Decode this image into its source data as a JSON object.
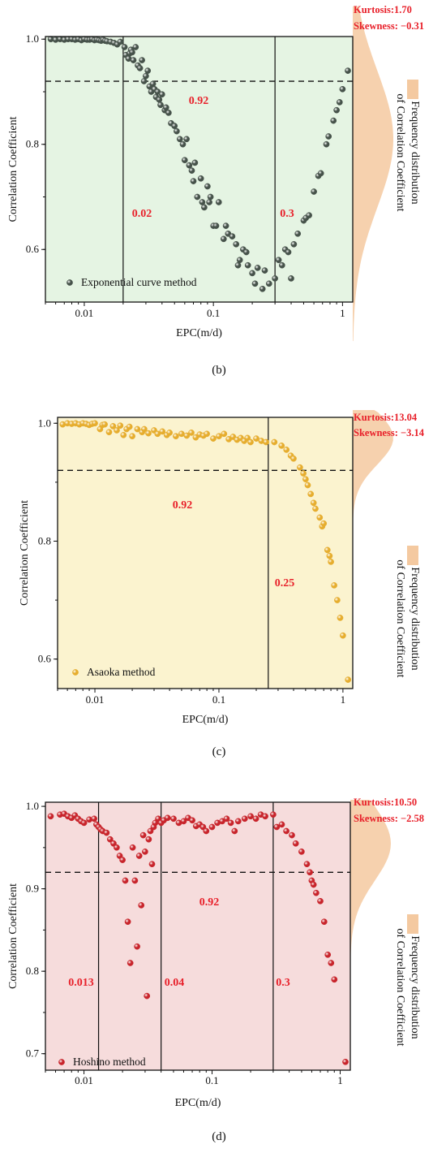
{
  "chart_data": [
    {
      "type": "scatter",
      "panel_label": "b",
      "panel_caption": "(b)",
      "xlabel": "EPC(m/d)",
      "ylabel": "Correlation Coefficient",
      "x_scale": "log",
      "xlim": [
        0.005,
        1.2
      ],
      "ylim": [
        0.5,
        1.005
      ],
      "xticks": [
        0.01,
        0.1,
        1
      ],
      "xtick_labels": [
        "0.01",
        "0.1",
        "1"
      ],
      "yticks": [
        0.6,
        0.8,
        1.0
      ],
      "ytick_labels": [
        "0.6",
        "0.8",
        "1.0"
      ],
      "plot_bg": "#e5f4e3",
      "marker_color": "#46524a",
      "legend": "Exponential curve method",
      "legend_position": "bottom-left",
      "hline": 0.92,
      "hline_label": "0.92",
      "vlines": [
        0.02,
        0.3
      ],
      "vline_labels": [
        "0.02",
        "0.3"
      ],
      "kurtosis": "Kurtosis:1.70",
      "skewness": "Skewness: −0.31",
      "distribution": {
        "mean": 0.81,
        "sd": 0.13
      },
      "dist_label_1": "Frequency distribution",
      "dist_label_2": "of Correlation Coefficient",
      "points": [
        [
          0.0055,
          1.0
        ],
        [
          0.006,
          0.999
        ],
        [
          0.0065,
          1.0
        ],
        [
          0.007,
          0.999
        ],
        [
          0.0075,
          1.0
        ],
        [
          0.008,
          1.0
        ],
        [
          0.0085,
          0.999
        ],
        [
          0.009,
          1.0
        ],
        [
          0.0095,
          0.998
        ],
        [
          0.01,
          1.0
        ],
        [
          0.0105,
          0.999
        ],
        [
          0.011,
          0.999
        ],
        [
          0.0115,
          1.0
        ],
        [
          0.012,
          0.998
        ],
        [
          0.0125,
          0.999
        ],
        [
          0.013,
          0.998
        ],
        [
          0.0135,
          0.997
        ],
        [
          0.014,
          0.999
        ],
        [
          0.0145,
          0.997
        ],
        [
          0.015,
          0.996
        ],
        [
          0.016,
          0.995
        ],
        [
          0.017,
          0.993
        ],
        [
          0.018,
          0.99
        ],
        [
          0.019,
          0.995
        ],
        [
          0.0205,
          0.985
        ],
        [
          0.021,
          0.97
        ],
        [
          0.022,
          0.963
        ],
        [
          0.0225,
          0.973
        ],
        [
          0.023,
          0.98
        ],
        [
          0.0235,
          0.975
        ],
        [
          0.024,
          0.96
        ],
        [
          0.025,
          0.985
        ],
        [
          0.026,
          0.95
        ],
        [
          0.027,
          0.945
        ],
        [
          0.028,
          0.96
        ],
        [
          0.029,
          0.92
        ],
        [
          0.03,
          0.93
        ],
        [
          0.031,
          0.94
        ],
        [
          0.032,
          0.91
        ],
        [
          0.033,
          0.9
        ],
        [
          0.034,
          0.915
        ],
        [
          0.035,
          0.905
        ],
        [
          0.036,
          0.89
        ],
        [
          0.037,
          0.9
        ],
        [
          0.038,
          0.885
        ],
        [
          0.039,
          0.875
        ],
        [
          0.04,
          0.895
        ],
        [
          0.042,
          0.865
        ],
        [
          0.043,
          0.87
        ],
        [
          0.045,
          0.86
        ],
        [
          0.047,
          0.84
        ],
        [
          0.05,
          0.835
        ],
        [
          0.052,
          0.825
        ],
        [
          0.055,
          0.81
        ],
        [
          0.058,
          0.8
        ],
        [
          0.06,
          0.77
        ],
        [
          0.062,
          0.81
        ],
        [
          0.065,
          0.76
        ],
        [
          0.068,
          0.75
        ],
        [
          0.07,
          0.73
        ],
        [
          0.072,
          0.765
        ],
        [
          0.075,
          0.7
        ],
        [
          0.08,
          0.735
        ],
        [
          0.082,
          0.69
        ],
        [
          0.085,
          0.68
        ],
        [
          0.09,
          0.72
        ],
        [
          0.093,
          0.69
        ],
        [
          0.095,
          0.7
        ],
        [
          0.1,
          0.645
        ],
        [
          0.105,
          0.645
        ],
        [
          0.11,
          0.69
        ],
        [
          0.12,
          0.62
        ],
        [
          0.125,
          0.645
        ],
        [
          0.13,
          0.63
        ],
        [
          0.14,
          0.625
        ],
        [
          0.15,
          0.61
        ],
        [
          0.155,
          0.57
        ],
        [
          0.16,
          0.58
        ],
        [
          0.17,
          0.6
        ],
        [
          0.18,
          0.595
        ],
        [
          0.185,
          0.57
        ],
        [
          0.2,
          0.555
        ],
        [
          0.21,
          0.535
        ],
        [
          0.22,
          0.565
        ],
        [
          0.24,
          0.525
        ],
        [
          0.25,
          0.56
        ],
        [
          0.27,
          0.535
        ],
        [
          0.3,
          0.545
        ],
        [
          0.32,
          0.58
        ],
        [
          0.34,
          0.57
        ],
        [
          0.36,
          0.6
        ],
        [
          0.38,
          0.595
        ],
        [
          0.4,
          0.545
        ],
        [
          0.42,
          0.61
        ],
        [
          0.45,
          0.63
        ],
        [
          0.5,
          0.655
        ],
        [
          0.52,
          0.66
        ],
        [
          0.55,
          0.665
        ],
        [
          0.6,
          0.71
        ],
        [
          0.65,
          0.74
        ],
        [
          0.68,
          0.745
        ],
        [
          0.75,
          0.8
        ],
        [
          0.78,
          0.815
        ],
        [
          0.85,
          0.845
        ],
        [
          0.9,
          0.865
        ],
        [
          0.95,
          0.88
        ],
        [
          1.0,
          0.905
        ],
        [
          1.1,
          0.94
        ]
      ]
    },
    {
      "type": "scatter",
      "panel_label": "c",
      "panel_caption": "(c)",
      "xlabel": "EPC(m/d)",
      "ylabel": "Correlation Coefficient",
      "x_scale": "log",
      "xlim": [
        0.005,
        1.2
      ],
      "ylim": [
        0.55,
        1.01
      ],
      "xticks": [
        0.01,
        0.1,
        1
      ],
      "xtick_labels": [
        "0.01",
        "0.1",
        "1"
      ],
      "yticks": [
        0.6,
        0.8,
        1.0
      ],
      "ytick_labels": [
        "0.6",
        "0.8",
        "1.0"
      ],
      "plot_bg": "#fbf3cf",
      "marker_color": "#e6ad2e",
      "legend": "Asaoka method",
      "legend_position": "bottom-left",
      "hline": 0.92,
      "hline_label": "0.92",
      "vlines": [
        0.25
      ],
      "vline_labels": [
        "0.25"
      ],
      "kurtosis": "Kurtosis:13.04",
      "skewness": "Skewness: −3.14",
      "distribution": {
        "mean": 0.975,
        "sd": 0.045
      },
      "dist_label_1": "Frequency distribution",
      "dist_label_2": "of Correlation Coefficient",
      "points": [
        [
          0.0055,
          0.998
        ],
        [
          0.006,
          1.0
        ],
        [
          0.0065,
          0.999
        ],
        [
          0.007,
          1.0
        ],
        [
          0.0075,
          0.998
        ],
        [
          0.008,
          1.0
        ],
        [
          0.0085,
          0.999
        ],
        [
          0.009,
          0.997
        ],
        [
          0.0095,
          0.999
        ],
        [
          0.01,
          1.0
        ],
        [
          0.011,
          0.99
        ],
        [
          0.0115,
          0.997
        ],
        [
          0.012,
          0.998
        ],
        [
          0.013,
          0.985
        ],
        [
          0.014,
          0.995
        ],
        [
          0.015,
          0.988
        ],
        [
          0.016,
          0.996
        ],
        [
          0.017,
          0.98
        ],
        [
          0.018,
          0.99
        ],
        [
          0.019,
          0.994
        ],
        [
          0.02,
          0.978
        ],
        [
          0.022,
          0.99
        ],
        [
          0.024,
          0.985
        ],
        [
          0.025,
          0.99
        ],
        [
          0.027,
          0.983
        ],
        [
          0.03,
          0.988
        ],
        [
          0.032,
          0.982
        ],
        [
          0.035,
          0.986
        ],
        [
          0.038,
          0.98
        ],
        [
          0.04,
          0.984
        ],
        [
          0.045,
          0.978
        ],
        [
          0.05,
          0.982
        ],
        [
          0.055,
          0.979
        ],
        [
          0.06,
          0.984
        ],
        [
          0.065,
          0.976
        ],
        [
          0.07,
          0.981
        ],
        [
          0.075,
          0.979
        ],
        [
          0.08,
          0.982
        ],
        [
          0.09,
          0.974
        ],
        [
          0.1,
          0.978
        ],
        [
          0.11,
          0.982
        ],
        [
          0.12,
          0.973
        ],
        [
          0.13,
          0.977
        ],
        [
          0.14,
          0.972
        ],
        [
          0.15,
          0.975
        ],
        [
          0.16,
          0.97
        ],
        [
          0.17,
          0.975
        ],
        [
          0.18,
          0.968
        ],
        [
          0.2,
          0.974
        ],
        [
          0.22,
          0.97
        ],
        [
          0.24,
          0.968
        ],
        [
          0.28,
          0.968
        ],
        [
          0.32,
          0.962
        ],
        [
          0.35,
          0.955
        ],
        [
          0.38,
          0.945
        ],
        [
          0.4,
          0.94
        ],
        [
          0.45,
          0.925
        ],
        [
          0.48,
          0.915
        ],
        [
          0.5,
          0.905
        ],
        [
          0.52,
          0.895
        ],
        [
          0.55,
          0.88
        ],
        [
          0.58,
          0.865
        ],
        [
          0.6,
          0.855
        ],
        [
          0.65,
          0.84
        ],
        [
          0.68,
          0.825
        ],
        [
          0.7,
          0.83
        ],
        [
          0.75,
          0.785
        ],
        [
          0.78,
          0.775
        ],
        [
          0.8,
          0.765
        ],
        [
          0.85,
          0.725
        ],
        [
          0.9,
          0.7
        ],
        [
          0.95,
          0.67
        ],
        [
          1.0,
          0.64
        ],
        [
          1.1,
          0.565
        ]
      ]
    },
    {
      "type": "scatter",
      "panel_label": "d",
      "panel_caption": "(d)",
      "xlabel": "EPC(m/d)",
      "ylabel": "Correlation Coefficient",
      "x_scale": "log",
      "xlim": [
        0.005,
        1.2
      ],
      "ylim": [
        0.68,
        1.005
      ],
      "xticks": [
        0.01,
        0.1,
        1
      ],
      "xtick_labels": [
        "0.01",
        "0.1",
        "1"
      ],
      "yticks": [
        0.7,
        0.8,
        0.9,
        1.0
      ],
      "ytick_labels": [
        "0.7",
        "0.8",
        "0.9",
        "1.0"
      ],
      "plot_bg": "#f6dcdc",
      "marker_color": "#c8242b",
      "legend": "Hoshino method",
      "legend_position": "bottom-left",
      "hline": 0.92,
      "hline_label": "0.92",
      "vlines": [
        0.013,
        0.04,
        0.3
      ],
      "vline_labels": [
        "0.013",
        "0.04",
        "0.3"
      ],
      "kurtosis": "Kurtosis:10.50",
      "skewness": "Skewness: −2.58",
      "distribution": {
        "mean": 0.955,
        "sd": 0.045
      },
      "dist_label_1": "Frequency distribution",
      "dist_label_2": "of Correlation Coefficient",
      "points": [
        [
          0.0055,
          0.988
        ],
        [
          0.0065,
          0.99
        ],
        [
          0.007,
          0.991
        ],
        [
          0.0075,
          0.988
        ],
        [
          0.008,
          0.986
        ],
        [
          0.0085,
          0.989
        ],
        [
          0.009,
          0.985
        ],
        [
          0.0095,
          0.982
        ],
        [
          0.01,
          0.98
        ],
        [
          0.011,
          0.984
        ],
        [
          0.012,
          0.985
        ],
        [
          0.0125,
          0.978
        ],
        [
          0.013,
          0.975
        ],
        [
          0.0135,
          0.972
        ],
        [
          0.014,
          0.97
        ],
        [
          0.015,
          0.968
        ],
        [
          0.016,
          0.96
        ],
        [
          0.017,
          0.955
        ],
        [
          0.018,
          0.95
        ],
        [
          0.019,
          0.94
        ],
        [
          0.02,
          0.935
        ],
        [
          0.021,
          0.91
        ],
        [
          0.022,
          0.86
        ],
        [
          0.023,
          0.81
        ],
        [
          0.024,
          0.95
        ],
        [
          0.025,
          0.91
        ],
        [
          0.026,
          0.83
        ],
        [
          0.027,
          0.94
        ],
        [
          0.028,
          0.88
        ],
        [
          0.029,
          0.965
        ],
        [
          0.03,
          0.945
        ],
        [
          0.031,
          0.77
        ],
        [
          0.032,
          0.96
        ],
        [
          0.033,
          0.97
        ],
        [
          0.034,
          0.93
        ],
        [
          0.035,
          0.975
        ],
        [
          0.036,
          0.98
        ],
        [
          0.038,
          0.985
        ],
        [
          0.04,
          0.98
        ],
        [
          0.042,
          0.983
        ],
        [
          0.045,
          0.986
        ],
        [
          0.05,
          0.985
        ],
        [
          0.055,
          0.98
        ],
        [
          0.06,
          0.982
        ],
        [
          0.065,
          0.986
        ],
        [
          0.07,
          0.983
        ],
        [
          0.075,
          0.976
        ],
        [
          0.08,
          0.978
        ],
        [
          0.085,
          0.975
        ],
        [
          0.09,
          0.97
        ],
        [
          0.1,
          0.975
        ],
        [
          0.11,
          0.98
        ],
        [
          0.12,
          0.982
        ],
        [
          0.13,
          0.985
        ],
        [
          0.14,
          0.98
        ],
        [
          0.15,
          0.97
        ],
        [
          0.16,
          0.982
        ],
        [
          0.18,
          0.985
        ],
        [
          0.2,
          0.988
        ],
        [
          0.22,
          0.985
        ],
        [
          0.24,
          0.99
        ],
        [
          0.26,
          0.988
        ],
        [
          0.3,
          0.99
        ],
        [
          0.32,
          0.975
        ],
        [
          0.35,
          0.978
        ],
        [
          0.38,
          0.97
        ],
        [
          0.42,
          0.965
        ],
        [
          0.45,
          0.955
        ],
        [
          0.5,
          0.945
        ],
        [
          0.55,
          0.93
        ],
        [
          0.58,
          0.92
        ],
        [
          0.6,
          0.91
        ],
        [
          0.62,
          0.905
        ],
        [
          0.65,
          0.895
        ],
        [
          0.7,
          0.885
        ],
        [
          0.75,
          0.86
        ],
        [
          0.8,
          0.82
        ],
        [
          0.85,
          0.81
        ],
        [
          0.9,
          0.79
        ],
        [
          1.1,
          0.69
        ]
      ]
    }
  ]
}
